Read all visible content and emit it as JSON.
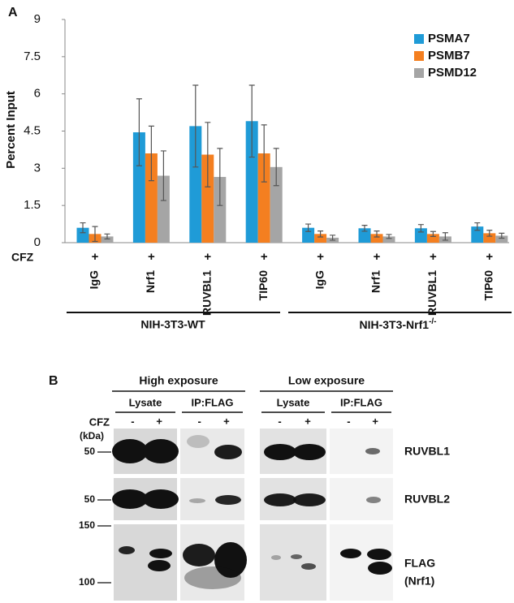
{
  "chart_data": {
    "type": "bar",
    "panel": "A",
    "ylabel": "Percent Input",
    "categories": [
      "IgG",
      "Nrf1",
      "RUVBL1",
      "TIP60",
      "IgG",
      "Nrf1",
      "RUVBL1",
      "TIP60"
    ],
    "series": [
      {
        "name": "PSMA7",
        "color": "#1f9bd7",
        "values": [
          0.6,
          4.45,
          4.7,
          4.9,
          0.6,
          0.58,
          0.58,
          0.65
        ],
        "errors": [
          0.2,
          1.35,
          1.65,
          1.45,
          0.15,
          0.12,
          0.15,
          0.15
        ]
      },
      {
        "name": "PSMB7",
        "color": "#f47f20",
        "values": [
          0.35,
          3.6,
          3.55,
          3.6,
          0.35,
          0.35,
          0.35,
          0.38
        ],
        "errors": [
          0.3,
          1.1,
          1.3,
          1.15,
          0.12,
          0.12,
          0.1,
          0.12
        ]
      },
      {
        "name": "PSMD12",
        "color": "#a5a5a5",
        "values": [
          0.25,
          2.7,
          2.65,
          3.05,
          0.2,
          0.25,
          0.25,
          0.28
        ],
        "errors": [
          0.1,
          1.0,
          1.15,
          0.75,
          0.1,
          0.08,
          0.15,
          0.1
        ]
      }
    ],
    "ylim": [
      0,
      9
    ],
    "yticks": [
      0,
      1.5,
      3,
      4.5,
      6,
      7.5,
      9
    ],
    "grid": false,
    "legend": "top-right"
  },
  "cfz": {
    "label": "CFZ",
    "marks": [
      "+",
      "+",
      "+",
      "+",
      "+",
      "+",
      "+",
      "+"
    ]
  },
  "groups": {
    "labels": [
      "NIH-3T3-WT",
      "NIH-3T3-Nrf1"
    ],
    "superscript": "-/-"
  },
  "blot": {
    "panel": "B",
    "exposures": [
      "High exposure",
      "Low exposure"
    ],
    "sample_groups": [
      "Lysate",
      "IP:FLAG",
      "Lysate",
      "IP:FLAG"
    ],
    "cfz_label": "CFZ",
    "cfz_marks": [
      "-",
      "+",
      "-",
      "+",
      "-",
      "+",
      "-",
      "+"
    ],
    "kda_label": "(kDa)",
    "markers": [
      "50",
      "50",
      "150",
      "100"
    ],
    "row_labels": [
      "RUVBL1",
      "RUVBL2",
      "FLAG",
      "(Nrf1)"
    ]
  }
}
